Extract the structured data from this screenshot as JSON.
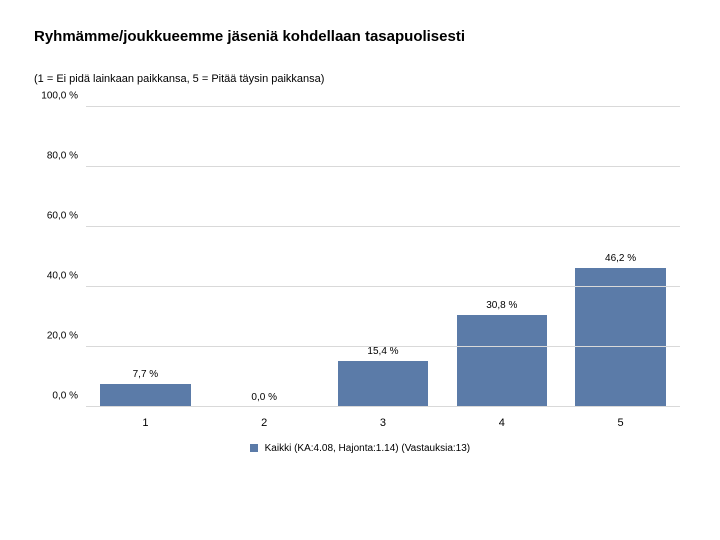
{
  "title": "Ryhmämme/joukkueemme jäseniä kohdellaan tasapuolisesti",
  "subtitle": "(1 = Ei pidä lainkaan paikkansa, 5 = Pitää täysin paikkansa)",
  "chart": {
    "type": "bar",
    "categories": [
      "1",
      "2",
      "3",
      "4",
      "5"
    ],
    "values": [
      7.7,
      0.0,
      15.4,
      30.8,
      46.2
    ],
    "value_labels": [
      "7,7 %",
      "0,0 %",
      "15,4 %",
      "30,8 %",
      "46,2 %"
    ],
    "bar_color": "#5b7ba8",
    "background_color": "#ffffff",
    "grid_color": "#d9d9d9",
    "ylim": [
      0,
      100
    ],
    "ytick_values": [
      0,
      20,
      40,
      60,
      80,
      100
    ],
    "ytick_labels": [
      "0,0 %",
      "20,0 %",
      "40,0 %",
      "60,0 %",
      "80,0 %",
      "100,0 %"
    ],
    "label_fontsize": 10,
    "axis_fontsize": 10,
    "bar_width_pct": 76
  },
  "legend": {
    "swatch_color": "#5b7ba8",
    "text": "Kaikki (KA:4.08, Hajonta:1.14) (Vastauksia:13)"
  }
}
